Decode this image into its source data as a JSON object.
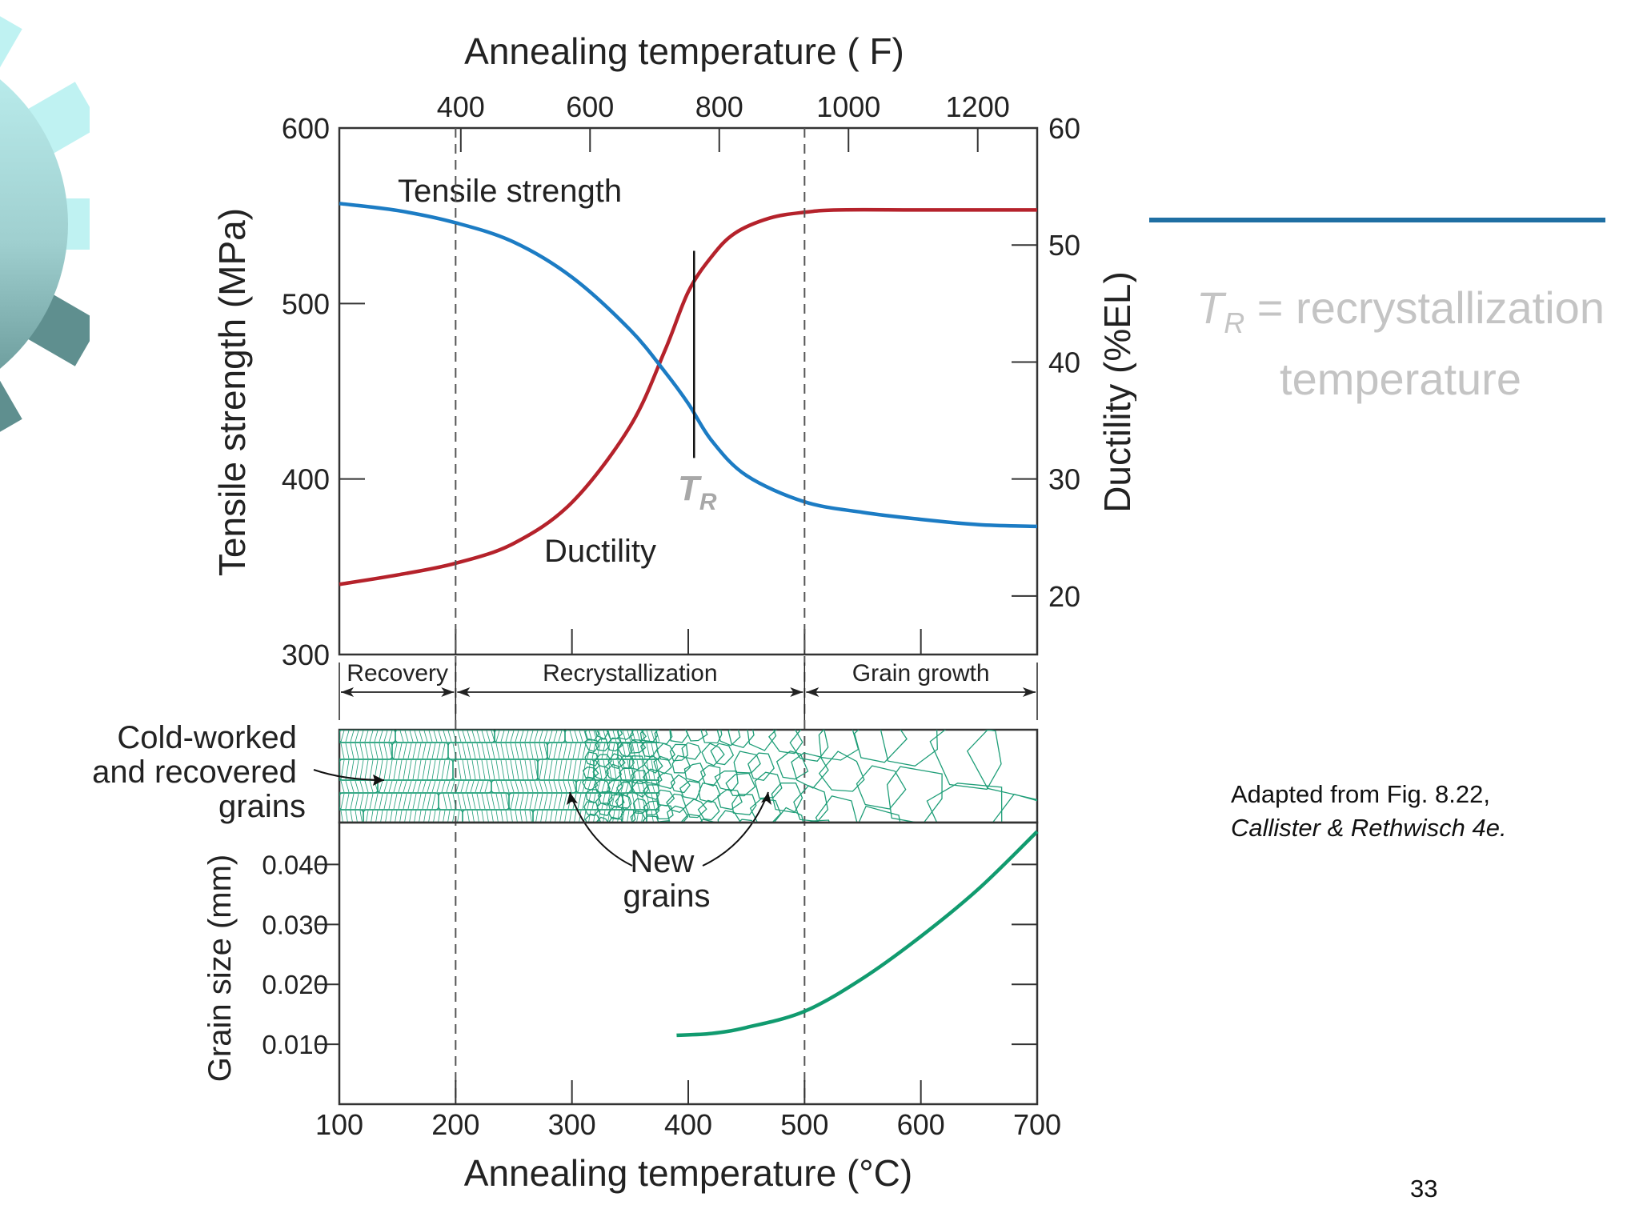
{
  "slide": {
    "definition_symbol": "T",
    "definition_subscript": "R",
    "definition_text": " = recrystallization temperature",
    "credit_line1": "Adapted from Fig. 8.22,",
    "credit_line2": "Callister & Rethwisch 4e.",
    "page_number": "33",
    "colors": {
      "rule": "#1f6fa3",
      "definition_text": "#c4c4c4",
      "gear_light": "#bff2f2",
      "gear_dark": "#5f8f8f"
    },
    "icons": [
      "gear-decoration-icon"
    ]
  },
  "chart_data": [
    {
      "type": "line",
      "title": "",
      "x_top_label": "Annealing temperature ( F)",
      "x_top_ticks": [
        "400",
        "600",
        "800",
        "1000",
        "1200"
      ],
      "x_top_tick_values_F": [
        400,
        600,
        800,
        1000,
        1200
      ],
      "xlabel": "Annealing temperature (°C)",
      "xlim": [
        100,
        700
      ],
      "x_ticks": [
        "100",
        "200",
        "300",
        "400",
        "500",
        "600",
        "700"
      ],
      "ylabel_left": "Tensile strength (MPa)",
      "ylim_left": [
        300,
        600
      ],
      "y_left_ticks": [
        "300",
        "400",
        "500",
        "600"
      ],
      "ylabel_right": "Ductility (%EL)",
      "ylim_right": [
        15,
        60
      ],
      "y_right_ticks": [
        "20",
        "30",
        "40",
        "50",
        "60"
      ],
      "series": [
        {
          "name": "Tensile strength",
          "color": "#1c7cc4",
          "axis": "left",
          "x": [
            100,
            150,
            200,
            250,
            300,
            350,
            380,
            400,
            420,
            450,
            500,
            550,
            600,
            650,
            700
          ],
          "y": [
            557,
            553,
            546,
            535,
            515,
            485,
            461,
            443,
            422,
            402,
            387,
            381,
            377,
            374,
            373
          ]
        },
        {
          "name": "Ductility",
          "color": "#b5222b",
          "axis": "right",
          "x": [
            100,
            150,
            200,
            250,
            300,
            350,
            380,
            400,
            420,
            440,
            470,
            500,
            530,
            600,
            700
          ],
          "y": [
            21,
            21.8,
            22.8,
            24.5,
            28,
            34.5,
            41,
            46,
            49,
            51,
            52.3,
            52.8,
            53,
            53,
            53
          ]
        }
      ],
      "annotations": {
        "tr_label": "T",
        "tr_subscript": "R",
        "tr_x": 405,
        "tr_line_range_mpa": [
          412,
          530
        ],
        "dashed_lines_x": [
          200,
          500
        ],
        "phases": [
          {
            "label": "Recovery",
            "from": 100,
            "to": 200
          },
          {
            "label": "Recrystallization",
            "from": 200,
            "to": 500
          },
          {
            "label": "Grain growth",
            "from": 500,
            "to": 700
          }
        ],
        "microstructure_labels": {
          "cold_worked": [
            "Cold-worked",
            "and recovered",
            "grains"
          ],
          "new_grains": [
            "New",
            "grains"
          ]
        }
      },
      "grid": false,
      "legend": "none"
    },
    {
      "type": "line",
      "title": "",
      "xlabel": "Annealing temperature (°C)",
      "ylabel": "Grain size (mm)",
      "xlim": [
        100,
        700
      ],
      "ylim": [
        0,
        0.047
      ],
      "y_ticks": [
        "0.010",
        "0.020",
        "0.030",
        "0.040"
      ],
      "series": [
        {
          "name": "",
          "color": "#119b6f",
          "x": [
            390,
            420,
            450,
            500,
            550,
            600,
            650,
            700
          ],
          "y": [
            0.0115,
            0.0118,
            0.0128,
            0.0155,
            0.021,
            0.028,
            0.036,
            0.0455
          ]
        }
      ],
      "grid": false,
      "legend": "none"
    }
  ]
}
